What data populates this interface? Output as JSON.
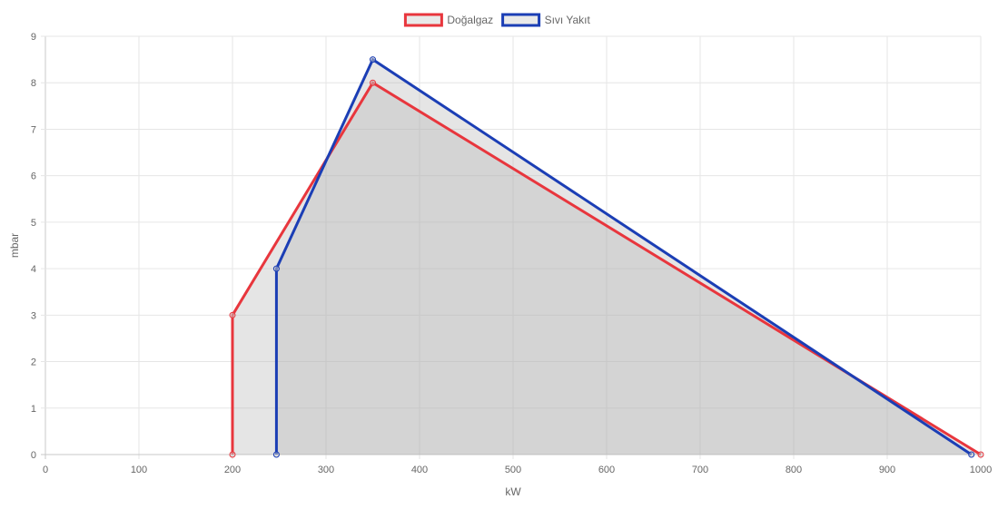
{
  "chart_data": {
    "type": "area",
    "xlabel": "kW",
    "ylabel": "mbar",
    "xlim": [
      0,
      1000
    ],
    "ylim": [
      0,
      9
    ],
    "x_ticks": [
      "0",
      "100",
      "200",
      "300",
      "400",
      "500",
      "600",
      "700",
      "800",
      "900",
      "1000"
    ],
    "y_ticks": [
      "0",
      "1",
      "2",
      "3",
      "4",
      "5",
      "6",
      "7",
      "8",
      "9"
    ],
    "grid": true,
    "legend_position": "top-center",
    "series": [
      {
        "name": "Doğalgaz",
        "color": "#e8363d",
        "fill": "rgba(180,180,180,0.35)",
        "points": [
          {
            "x": 200,
            "y": 0
          },
          {
            "x": 200,
            "y": 3
          },
          {
            "x": 350,
            "y": 8
          },
          {
            "x": 1000,
            "y": 0
          }
        ]
      },
      {
        "name": "Sıvı Yakıt",
        "color": "#1b3eb5",
        "fill": "rgba(180,180,180,0.35)",
        "points": [
          {
            "x": 247,
            "y": 0
          },
          {
            "x": 247,
            "y": 4
          },
          {
            "x": 350,
            "y": 8.5
          },
          {
            "x": 990,
            "y": 0
          }
        ]
      }
    ]
  }
}
